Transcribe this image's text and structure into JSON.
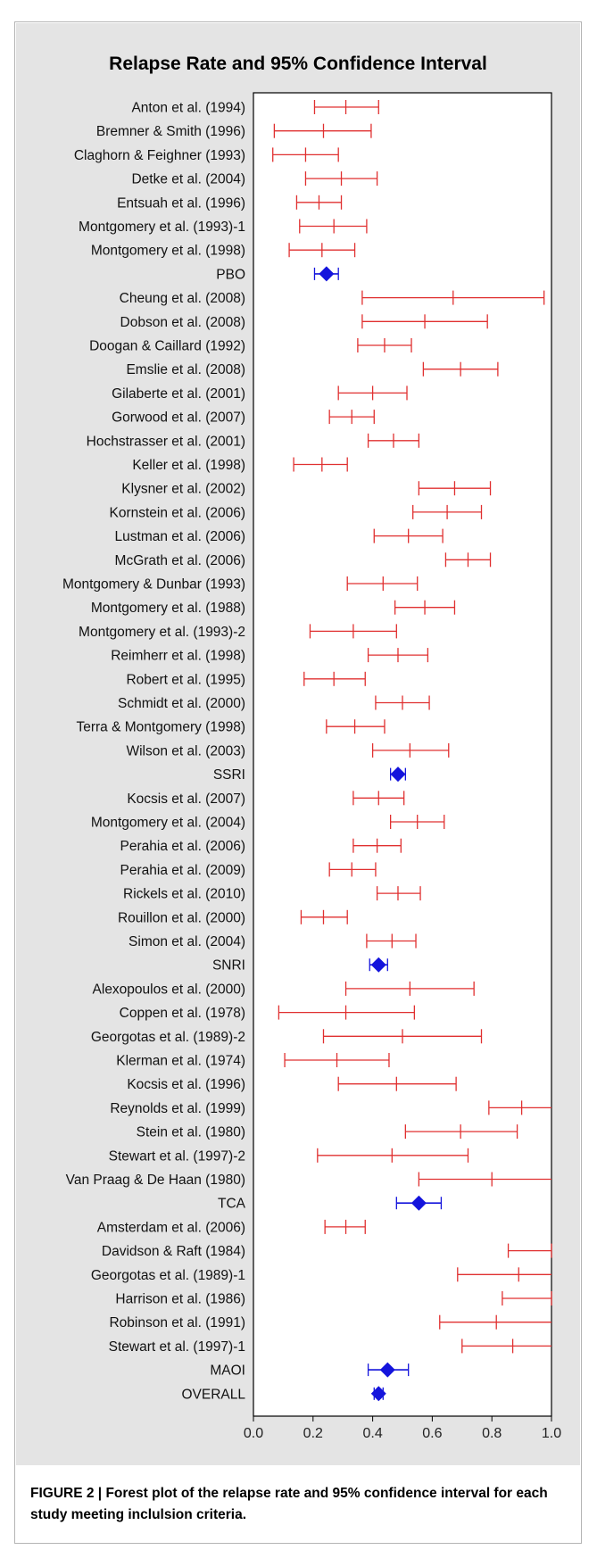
{
  "chart_data": {
    "type": "forest",
    "title": "Relapse Rate and 95% Confidence Interval",
    "xlim": [
      0.0,
      1.0
    ],
    "x_ticks": [
      "0.0",
      "0.2",
      "0.4",
      "0.6",
      "0.8",
      "1.0"
    ],
    "x_tick_values": [
      0.0,
      0.2,
      0.4,
      0.6,
      0.8,
      1.0
    ],
    "grid": false,
    "colors": {
      "study": "#e03030",
      "pooled": "#1414dc"
    },
    "rows": [
      {
        "label": "Anton et al. (1994)",
        "estimate": 0.31,
        "lower": 0.205,
        "upper": 0.42,
        "pooled": false
      },
      {
        "label": "Bremner & Smith (1996)",
        "estimate": 0.235,
        "lower": 0.07,
        "upper": 0.395,
        "pooled": false
      },
      {
        "label": "Claghorn & Feighner (1993)",
        "estimate": 0.175,
        "lower": 0.065,
        "upper": 0.285,
        "pooled": false
      },
      {
        "label": "Detke et al. (2004)",
        "estimate": 0.295,
        "lower": 0.175,
        "upper": 0.415,
        "pooled": false
      },
      {
        "label": "Entsuah et al. (1996)",
        "estimate": 0.22,
        "lower": 0.145,
        "upper": 0.295,
        "pooled": false
      },
      {
        "label": "Montgomery et al. (1993)-1",
        "estimate": 0.27,
        "lower": 0.155,
        "upper": 0.38,
        "pooled": false
      },
      {
        "label": "Montgomery et al. (1998)",
        "estimate": 0.23,
        "lower": 0.12,
        "upper": 0.34,
        "pooled": false
      },
      {
        "label": "PBO",
        "estimate": 0.245,
        "lower": 0.205,
        "upper": 0.285,
        "pooled": true
      },
      {
        "label": "Cheung et al. (2008)",
        "estimate": 0.67,
        "lower": 0.365,
        "upper": 0.975,
        "pooled": false
      },
      {
        "label": "Dobson et al. (2008)",
        "estimate": 0.575,
        "lower": 0.365,
        "upper": 0.785,
        "pooled": false
      },
      {
        "label": "Doogan & Caillard (1992)",
        "estimate": 0.44,
        "lower": 0.35,
        "upper": 0.53,
        "pooled": false
      },
      {
        "label": "Emslie et al. (2008)",
        "estimate": 0.695,
        "lower": 0.57,
        "upper": 0.82,
        "pooled": false
      },
      {
        "label": "Gilaberte et al. (2001)",
        "estimate": 0.4,
        "lower": 0.285,
        "upper": 0.515,
        "pooled": false
      },
      {
        "label": "Gorwood et al. (2007)",
        "estimate": 0.33,
        "lower": 0.255,
        "upper": 0.405,
        "pooled": false
      },
      {
        "label": "Hochstrasser et al. (2001)",
        "estimate": 0.47,
        "lower": 0.385,
        "upper": 0.555,
        "pooled": false
      },
      {
        "label": "Keller et al. (1998)",
        "estimate": 0.23,
        "lower": 0.135,
        "upper": 0.315,
        "pooled": false
      },
      {
        "label": "Klysner et al. (2002)",
        "estimate": 0.675,
        "lower": 0.555,
        "upper": 0.795,
        "pooled": false
      },
      {
        "label": "Kornstein et al. (2006)",
        "estimate": 0.65,
        "lower": 0.535,
        "upper": 0.765,
        "pooled": false
      },
      {
        "label": "Lustman et al. (2006)",
        "estimate": 0.52,
        "lower": 0.405,
        "upper": 0.635,
        "pooled": false
      },
      {
        "label": "McGrath et al. (2006)",
        "estimate": 0.72,
        "lower": 0.645,
        "upper": 0.795,
        "pooled": false
      },
      {
        "label": "Montgomery & Dunbar (1993)",
        "estimate": 0.435,
        "lower": 0.315,
        "upper": 0.55,
        "pooled": false
      },
      {
        "label": "Montgomery et al. (1988)",
        "estimate": 0.575,
        "lower": 0.475,
        "upper": 0.675,
        "pooled": false
      },
      {
        "label": "Montgomery et al. (1993)-2",
        "estimate": 0.335,
        "lower": 0.19,
        "upper": 0.48,
        "pooled": false
      },
      {
        "label": "Reimherr et al. (1998)",
        "estimate": 0.485,
        "lower": 0.385,
        "upper": 0.585,
        "pooled": false
      },
      {
        "label": "Robert et al. (1995)",
        "estimate": 0.27,
        "lower": 0.17,
        "upper": 0.375,
        "pooled": false
      },
      {
        "label": "Schmidt et al. (2000)",
        "estimate": 0.5,
        "lower": 0.41,
        "upper": 0.59,
        "pooled": false
      },
      {
        "label": "Terra & Montgomery (1998)",
        "estimate": 0.34,
        "lower": 0.245,
        "upper": 0.44,
        "pooled": false
      },
      {
        "label": "Wilson et al. (2003)",
        "estimate": 0.525,
        "lower": 0.4,
        "upper": 0.655,
        "pooled": false
      },
      {
        "label": "SSRI",
        "estimate": 0.485,
        "lower": 0.46,
        "upper": 0.51,
        "pooled": true
      },
      {
        "label": "Kocsis et al. (2007)",
        "estimate": 0.42,
        "lower": 0.335,
        "upper": 0.505,
        "pooled": false
      },
      {
        "label": "Montgomery et al. (2004)",
        "estimate": 0.55,
        "lower": 0.46,
        "upper": 0.64,
        "pooled": false
      },
      {
        "label": "Perahia et al. (2006)",
        "estimate": 0.415,
        "lower": 0.335,
        "upper": 0.495,
        "pooled": false
      },
      {
        "label": "Perahia et al. (2009)",
        "estimate": 0.33,
        "lower": 0.255,
        "upper": 0.41,
        "pooled": false
      },
      {
        "label": "Rickels et al. (2010)",
        "estimate": 0.485,
        "lower": 0.415,
        "upper": 0.56,
        "pooled": false
      },
      {
        "label": "Rouillon et al. (2000)",
        "estimate": 0.235,
        "lower": 0.16,
        "upper": 0.315,
        "pooled": false
      },
      {
        "label": "Simon et al. (2004)",
        "estimate": 0.465,
        "lower": 0.38,
        "upper": 0.545,
        "pooled": false
      },
      {
        "label": "SNRI",
        "estimate": 0.42,
        "lower": 0.39,
        "upper": 0.45,
        "pooled": true
      },
      {
        "label": "Alexopoulos et al. (2000)",
        "estimate": 0.525,
        "lower": 0.31,
        "upper": 0.74,
        "pooled": false
      },
      {
        "label": "Coppen et al. (1978)",
        "estimate": 0.31,
        "lower": 0.085,
        "upper": 0.54,
        "pooled": false
      },
      {
        "label": "Georgotas et al. (1989)-2",
        "estimate": 0.5,
        "lower": 0.235,
        "upper": 0.765,
        "pooled": false
      },
      {
        "label": "Klerman et al. (1974)",
        "estimate": 0.28,
        "lower": 0.105,
        "upper": 0.455,
        "pooled": false
      },
      {
        "label": "Kocsis et al. (1996)",
        "estimate": 0.48,
        "lower": 0.285,
        "upper": 0.68,
        "pooled": false
      },
      {
        "label": "Reynolds et al. (1999)",
        "estimate": 0.9,
        "lower": 0.79,
        "upper": 1.0,
        "pooled": false
      },
      {
        "label": "Stein et al. (1980)",
        "estimate": 0.695,
        "lower": 0.51,
        "upper": 0.885,
        "pooled": false
      },
      {
        "label": "Stewart et al. (1997)-2",
        "estimate": 0.465,
        "lower": 0.215,
        "upper": 0.72,
        "pooled": false
      },
      {
        "label": "Van Praag & De Haan (1980)",
        "estimate": 0.8,
        "lower": 0.555,
        "upper": 1.0,
        "pooled": false
      },
      {
        "label": "TCA",
        "estimate": 0.555,
        "lower": 0.48,
        "upper": 0.63,
        "pooled": true
      },
      {
        "label": "Amsterdam et al. (2006)",
        "estimate": 0.31,
        "lower": 0.24,
        "upper": 0.375,
        "pooled": false
      },
      {
        "label": "Davidson & Raft (1984)",
        "estimate": 1.0,
        "lower": 0.855,
        "upper": 1.0,
        "pooled": false
      },
      {
        "label": "Georgotas et al. (1989)-1",
        "estimate": 0.89,
        "lower": 0.685,
        "upper": 1.0,
        "pooled": false
      },
      {
        "label": "Harrison et al. (1986)",
        "estimate": 1.0,
        "lower": 0.835,
        "upper": 1.0,
        "pooled": false
      },
      {
        "label": "Robinson et al. (1991)",
        "estimate": 0.815,
        "lower": 0.625,
        "upper": 1.0,
        "pooled": false
      },
      {
        "label": "Stewart et al. (1997)-1",
        "estimate": 0.87,
        "lower": 0.7,
        "upper": 1.0,
        "pooled": false
      },
      {
        "label": "MAOI",
        "estimate": 0.45,
        "lower": 0.385,
        "upper": 0.52,
        "pooled": true
      },
      {
        "label": "OVERALL",
        "estimate": 0.42,
        "lower": 0.405,
        "upper": 0.435,
        "pooled": true
      }
    ]
  },
  "caption": {
    "lead": "FIGURE 2 |",
    "text": "Forest plot of the relapse rate and 95% confidence interval for each study meeting inclulsion criteria."
  }
}
